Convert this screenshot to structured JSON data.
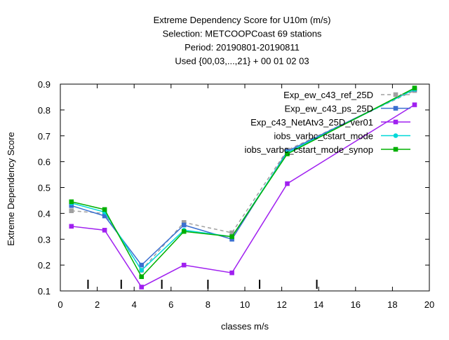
{
  "chart_data": {
    "type": "line",
    "title_lines": [
      "Extreme Dependency Score  for U10m (m/s)",
      "Selection: METCOOPCoast     69 stations",
      "Period: 20190801-20190811",
      "Used {00,03,...,21} + 00 01 02 03"
    ],
    "xlabel": "classes m/s",
    "ylabel": "Extreme Dependency Score",
    "xlim": [
      0,
      20
    ],
    "ylim": [
      0.1,
      0.9
    ],
    "xticks": [
      0,
      2,
      4,
      6,
      8,
      10,
      12,
      14,
      16,
      18,
      20
    ],
    "yticks": [
      0.1,
      0.2,
      0.3,
      0.4,
      0.5,
      0.6,
      0.7,
      0.8,
      0.9
    ],
    "bottom_marks": [
      1.5,
      3.3,
      5.5,
      8.0,
      10.8,
      13.9
    ],
    "grid": false,
    "legend_position": "top-right",
    "series": [
      {
        "name": "Exp_ew_c43_ref_25D",
        "color": "#a0a0a0",
        "dashed": true,
        "marker": "square",
        "x": [
          0.6,
          2.4,
          4.4,
          6.7,
          9.3,
          12.3,
          19.2
        ],
        "y": [
          0.41,
          0.4,
          0.18,
          0.365,
          0.325,
          0.645,
          0.875
        ]
      },
      {
        "name": "Exp_ew_c43_ps_25D",
        "color": "#3a6fd0",
        "dashed": false,
        "marker": "square",
        "x": [
          0.6,
          2.4,
          4.4,
          6.7,
          9.3,
          12.3,
          19.2
        ],
        "y": [
          0.43,
          0.39,
          0.2,
          0.355,
          0.3,
          0.64,
          0.88
        ]
      },
      {
        "name": "Exp_c43_NetAtv3_25D_ver01",
        "color": "#a020f0",
        "dashed": false,
        "marker": "square",
        "x": [
          0.6,
          2.4,
          4.4,
          6.7,
          9.3,
          12.3,
          19.2
        ],
        "y": [
          0.35,
          0.335,
          0.115,
          0.2,
          0.17,
          0.515,
          0.82
        ]
      },
      {
        "name": "iobs_varbc_cstart_mode",
        "color": "#00d8d8",
        "dashed": false,
        "marker": "circle",
        "x": [
          0.6,
          2.4,
          4.4,
          6.7,
          9.3,
          12.3,
          19.2
        ],
        "y": [
          0.44,
          0.405,
          0.18,
          0.335,
          0.31,
          0.635,
          0.88
        ]
      },
      {
        "name": "iobs_varbc_cstart_mode_synop",
        "color": "#00b000",
        "dashed": false,
        "marker": "square",
        "x": [
          0.6,
          2.4,
          4.4,
          6.7,
          9.3,
          12.3,
          19.2
        ],
        "y": [
          0.445,
          0.415,
          0.155,
          0.33,
          0.31,
          0.63,
          0.885
        ]
      }
    ]
  }
}
